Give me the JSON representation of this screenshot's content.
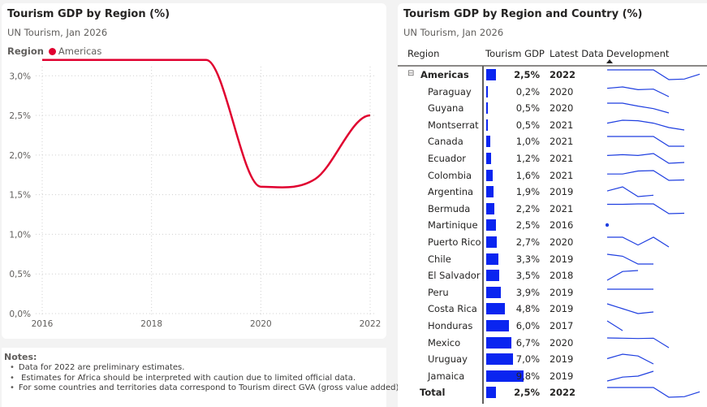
{
  "left_panel": {
    "title": "Tourism GDP by Region (%)",
    "subtitle": "UN Tourism, Jan 2026",
    "legend": {
      "title": "Region",
      "items": [
        {
          "label": "Americas",
          "color": "#e0002f"
        }
      ]
    }
  },
  "chart_data": [
    {
      "type": "line",
      "title": "Tourism GDP by Region (%)",
      "subtitle": "UN Tourism, Jan 2026",
      "xlabel": "",
      "ylabel": "",
      "x": [
        2016,
        2017,
        2018,
        2019,
        2020,
        2021,
        2022
      ],
      "series": [
        {
          "name": "Americas",
          "color": "#e0002f",
          "values": [
            3.2,
            3.2,
            3.2,
            3.2,
            1.6,
            1.7,
            2.5
          ]
        }
      ],
      "x_ticks": [
        "2016",
        "2018",
        "2020",
        "2022"
      ],
      "x_tick_values": [
        2016,
        2018,
        2020,
        2022
      ],
      "y_ticks": [
        "0,0%",
        "0,5%",
        "1,0%",
        "1,5%",
        "2,0%",
        "2,5%",
        "3,0%"
      ],
      "y_tick_values": [
        0,
        0.5,
        1.0,
        1.5,
        2.0,
        2.5,
        3.0
      ],
      "xlim": [
        2016,
        2022
      ],
      "ylim": [
        0,
        3.3
      ],
      "grid": true,
      "legend": "top-left"
    },
    {
      "type": "table",
      "title": "Tourism GDP by Region and Country (%)",
      "subtitle": "UN Tourism, Jan 2026",
      "columns": [
        "Region",
        "Tourism GDP",
        "Latest Data",
        "Development"
      ],
      "bar_max": 9.8,
      "rows": [
        {
          "name": "Americas",
          "level": "region",
          "value": 2.5,
          "value_label": "2,5%",
          "year": "2022",
          "spark": [
            3.2,
            3.2,
            3.2,
            3.2,
            1.6,
            1.7,
            2.5
          ]
        },
        {
          "name": "Paraguay",
          "level": "country",
          "value": 0.2,
          "value_label": "0,2%",
          "year": "2020",
          "spark": [
            0.5,
            0.55,
            0.45,
            0.47,
            0.2
          ]
        },
        {
          "name": "Guyana",
          "level": "country",
          "value": 0.5,
          "value_label": "0,5%",
          "year": "2020",
          "spark": [
            1.0,
            1.0,
            0.85,
            0.72,
            0.5
          ]
        },
        {
          "name": "Montserrat",
          "level": "country",
          "value": 0.5,
          "value_label": "0,5%",
          "year": "2021",
          "spark": [
            1.2,
            1.5,
            1.45,
            1.2,
            0.75,
            0.5
          ]
        },
        {
          "name": "Canada",
          "level": "country",
          "value": 1.0,
          "value_label": "1,0%",
          "year": "2021",
          "spark": [
            2.0,
            2.0,
            2.0,
            2.0,
            1.0,
            1.0
          ]
        },
        {
          "name": "Ecuador",
          "level": "country",
          "value": 1.2,
          "value_label": "1,2%",
          "year": "2021",
          "spark": [
            2.1,
            2.2,
            2.1,
            2.35,
            1.1,
            1.2
          ]
        },
        {
          "name": "Colombia",
          "level": "country",
          "value": 1.6,
          "value_label": "1,6%",
          "year": "2021",
          "spark": [
            2.4,
            2.4,
            2.8,
            2.85,
            1.55,
            1.6
          ]
        },
        {
          "name": "Argentina",
          "level": "country",
          "value": 1.9,
          "value_label": "1,9%",
          "year": "2019",
          "spark": [
            2.2,
            2.5,
            1.8,
            1.9
          ]
        },
        {
          "name": "Bermuda",
          "level": "country",
          "value": 2.2,
          "value_label": "2,2%",
          "year": "2021",
          "spark": [
            4.5,
            4.5,
            4.6,
            4.6,
            2.1,
            2.2
          ]
        },
        {
          "name": "Martinique",
          "level": "country",
          "value": 2.5,
          "value_label": "2,5%",
          "year": "2016",
          "spark": [
            2.5
          ]
        },
        {
          "name": "Puerto Rico",
          "level": "country",
          "value": 2.7,
          "value_label": "2,7%",
          "year": "2020",
          "spark": [
            3.2,
            3.2,
            2.8,
            3.2,
            2.7
          ]
        },
        {
          "name": "Chile",
          "level": "country",
          "value": 3.3,
          "value_label": "3,3%",
          "year": "2019",
          "spark": [
            3.8,
            3.7,
            3.3,
            3.3
          ]
        },
        {
          "name": "El Salvador",
          "level": "country",
          "value": 3.5,
          "value_label": "3,5%",
          "year": "2018",
          "spark": [
            3.0,
            3.45,
            3.5
          ]
        },
        {
          "name": "Peru",
          "level": "country",
          "value": 3.9,
          "value_label": "3,9%",
          "year": "2019",
          "spark": [
            3.9,
            3.9,
            3.9,
            3.9
          ]
        },
        {
          "name": "Costa Rica",
          "level": "country",
          "value": 4.8,
          "value_label": "4,8%",
          "year": "2019",
          "spark": [
            5.3,
            5.0,
            4.7,
            4.8
          ]
        },
        {
          "name": "Honduras",
          "level": "country",
          "value": 6.0,
          "value_label": "6,0%",
          "year": "2017",
          "spark": [
            6.5,
            6.0
          ]
        },
        {
          "name": "Mexico",
          "level": "country",
          "value": 6.7,
          "value_label": "6,7%",
          "year": "2020",
          "spark": [
            8.5,
            8.45,
            8.4,
            8.45,
            6.7
          ]
        },
        {
          "name": "Uruguay",
          "level": "country",
          "value": 7.0,
          "value_label": "7,0%",
          "year": "2019",
          "spark": [
            7.6,
            8.1,
            7.9,
            7.0
          ]
        },
        {
          "name": "Jamaica",
          "level": "country",
          "value": 9.8,
          "value_label": "9,8%",
          "year": "2019",
          "spark": [
            8.8,
            9.2,
            9.3,
            9.8
          ]
        },
        {
          "name": "Total",
          "level": "total",
          "value": 2.5,
          "value_label": "2,5%",
          "year": "2022",
          "spark": [
            3.2,
            3.2,
            3.2,
            3.2,
            1.6,
            1.7,
            2.5
          ]
        }
      ]
    }
  ],
  "right_panel": {
    "title": "Tourism GDP by Region and Country (%)",
    "subtitle": "UN Tourism, Jan 2026",
    "columns": {
      "region": "Region",
      "tourism_gdp": "Tourism GDP",
      "latest_data": "Latest Data",
      "development": "Development"
    },
    "expand_icon": "minus-box-icon",
    "bar_color": "#0a25f0",
    "spark_color": "#1f3fe0"
  },
  "notes": {
    "title": "Notes:",
    "items": [
      "Data for 2022 are preliminary estimates.",
      " Estimates for Africa should be interpreted with caution due to limited official data.",
      "For some countries and territories data correspond to Tourism direct GVA (gross value added)."
    ]
  }
}
